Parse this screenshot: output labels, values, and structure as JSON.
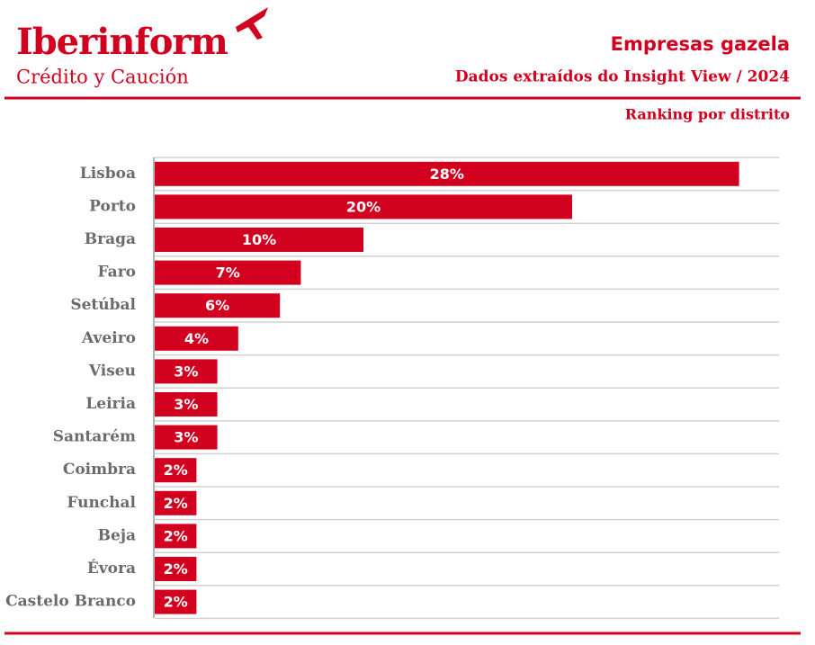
{
  "logo": {
    "name": "Iberinform",
    "tagline": "Crédito y Caución"
  },
  "chart_data": {
    "type": "bar",
    "orientation": "horizontal",
    "title": "Empresas gazela",
    "subtitle": "Dados extraídos do Insight View / 2024",
    "annotation": "Ranking por distrito",
    "color": "#d2001e",
    "categories": [
      "Lisboa",
      "Porto",
      "Braga",
      "Faro",
      "Setúbal",
      "Aveiro",
      "Viseu",
      "Leiria",
      "Santarém",
      "Coimbra",
      "Funchal",
      "Beja",
      "Évora",
      "Castelo Branco"
    ],
    "values": [
      28,
      20,
      10,
      7,
      6,
      4,
      3,
      3,
      3,
      2,
      2,
      2,
      2,
      2
    ],
    "value_labels": [
      "28%",
      "20%",
      "10%",
      "7%",
      "6%",
      "4%",
      "3%",
      "3%",
      "3%",
      "2%",
      "2%",
      "2%",
      "2%",
      "2%"
    ],
    "grid": true
  }
}
